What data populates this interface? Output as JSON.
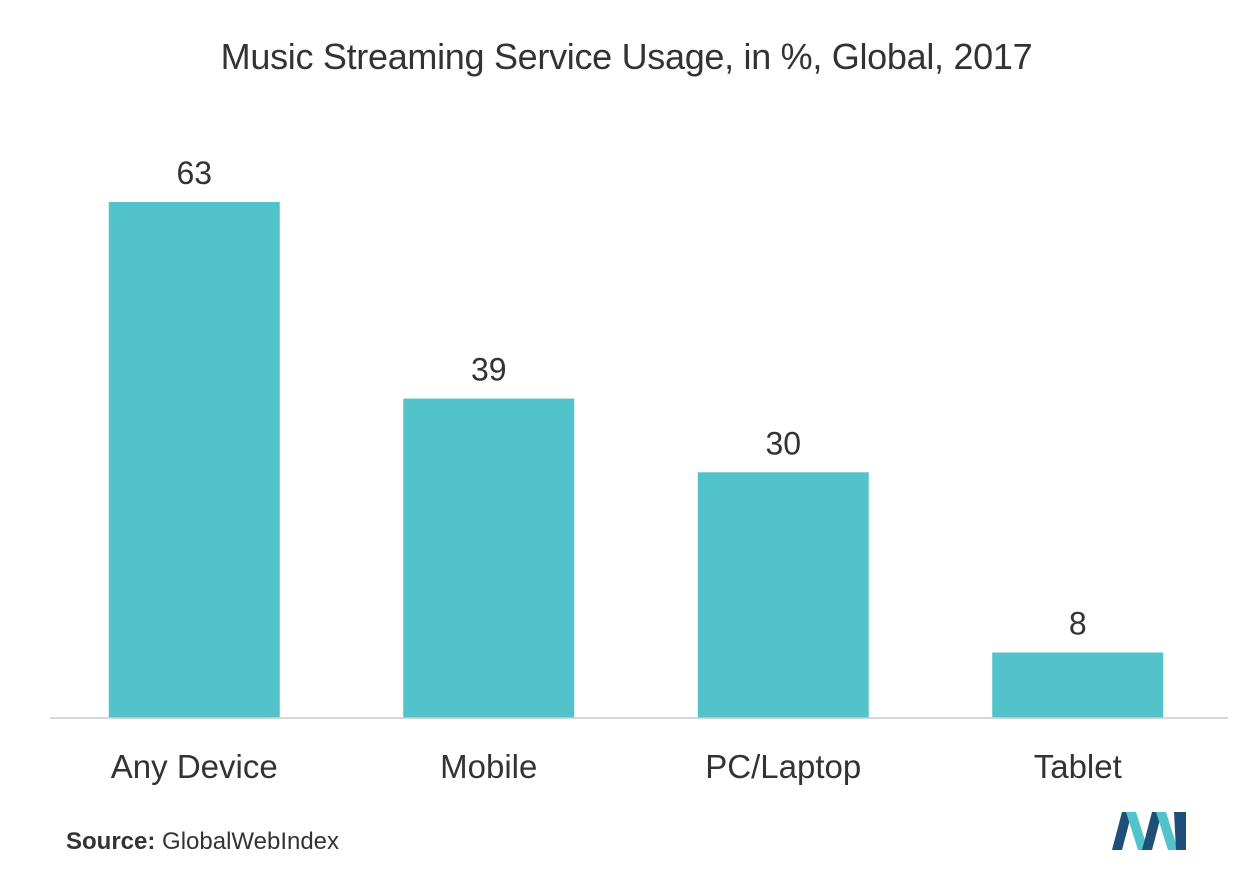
{
  "chart_data": {
    "type": "bar",
    "title": "Music Streaming Service Usage, in %, Global, 2017",
    "categories": [
      "Any Device",
      "Mobile",
      "PC/Laptop",
      "Tablet"
    ],
    "values": [
      63,
      39,
      30,
      8
    ],
    "xlabel": "",
    "ylabel": "",
    "ylim": [
      0,
      63
    ],
    "grid": false,
    "legend": "none",
    "data_labels": true
  },
  "source": {
    "label": "Source:",
    "text": "GlobalWebIndex"
  },
  "colors": {
    "bar": "#52C3CA",
    "axis": "#cccccc",
    "text": "#333333",
    "logo_dark": "#1f4e79",
    "logo_light": "#52C3CA"
  },
  "logo": {
    "icon": "mordor-intelligence-logo-icon"
  }
}
